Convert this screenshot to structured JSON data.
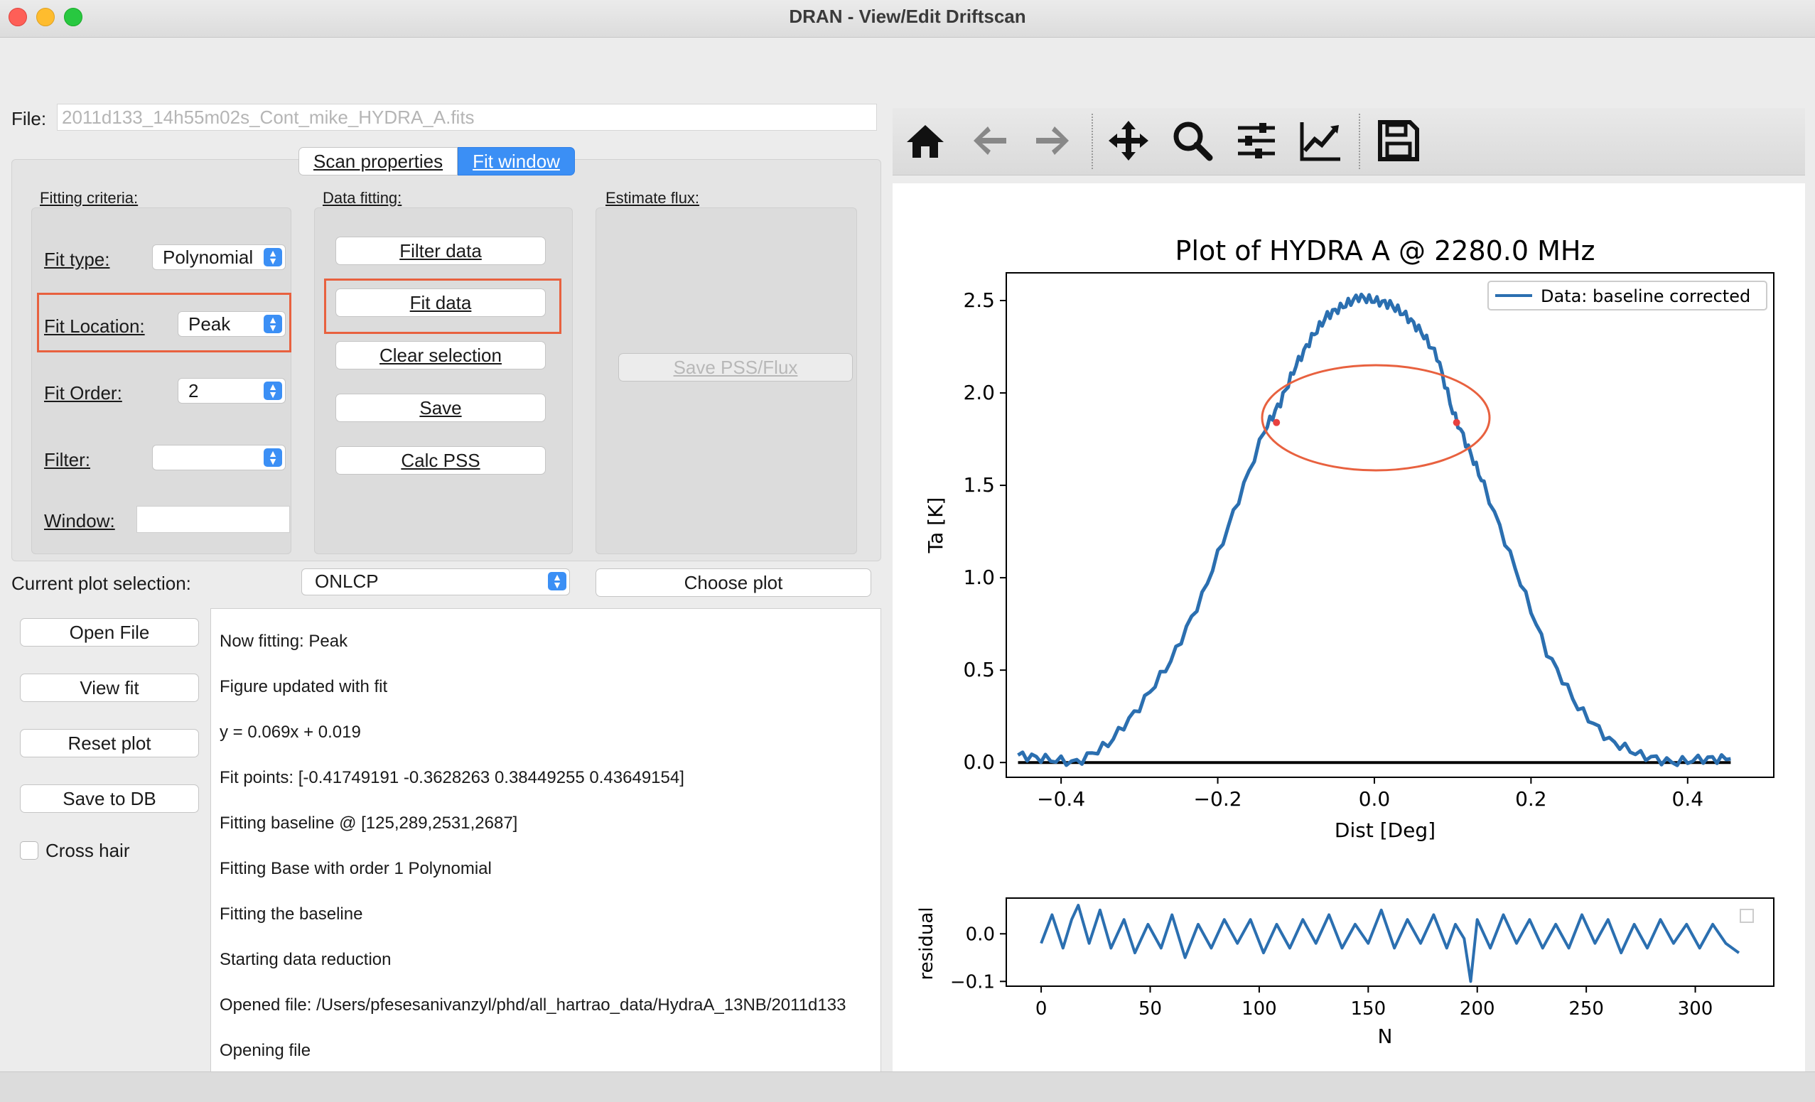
{
  "window": {
    "title": "DRAN - View/Edit Driftscan"
  },
  "file": {
    "label": "File:",
    "value": "2011d133_14h55m02s_Cont_mike_HYDRA_A.fits"
  },
  "tabs": [
    {
      "label": "Scan properties",
      "active": false
    },
    {
      "label": "Fit window",
      "active": true
    }
  ],
  "fitting_criteria": {
    "title": "Fitting criteria:",
    "fit_type": {
      "label": "Fit type:",
      "value": "Polynomial"
    },
    "fit_location": {
      "label": "Fit Location:",
      "value": "Peak"
    },
    "fit_order": {
      "label": "Fit Order:",
      "value": "2"
    },
    "filter": {
      "label": "Filter:",
      "value": ""
    },
    "window": {
      "label": "Window:",
      "value": ""
    }
  },
  "data_fitting": {
    "title": "Data fitting:",
    "buttons": [
      "Filter data",
      "Fit data",
      "Clear selection",
      "Save",
      "Calc PSS"
    ]
  },
  "estimate_flux": {
    "title": "Estimate flux:",
    "button": "Save PSS/Flux"
  },
  "plot_selection": {
    "label": "Current plot selection:",
    "value": "ONLCP",
    "choose_button": "Choose plot"
  },
  "side_buttons": [
    "Open File",
    "View fit",
    "Reset plot",
    "Save to DB"
  ],
  "cross_hair": {
    "label": "Cross hair",
    "checked": false
  },
  "log": [
    "Now fitting: Peak",
    "Figure updated with fit",
    "y = 0.069x + 0.019",
    "Fit points: [-0.41749191 -0.3628263   0.38449255  0.43649154]",
    "Fitting baseline @ [125,289,2531,2687]",
    "Fitting Base with order 1 Polynomial",
    "Fitting the baseline",
    "Starting data reduction",
    "Opened file: /Users/pfesesanivanzyl/phd/all_hartrao_data/HydraA_13NB/2011d133",
    "Opening file"
  ],
  "toolbar_icons": [
    "home-icon",
    "back-arrow-icon",
    "forward-arrow-icon",
    "pan-icon",
    "zoom-icon",
    "configure-subplots-icon",
    "edit-axis-icon",
    "save-figure-icon"
  ],
  "colors": {
    "accent": "#3b8ff5",
    "highlight": "#e8613f",
    "series": "#2b6fb0"
  },
  "chart_data": [
    {
      "type": "line",
      "title": "Plot of HYDRA A @ 2280.0 MHz",
      "xlabel": "Dist [Deg]",
      "ylabel": "Ta [K]",
      "xlim": [
        -0.47,
        0.51
      ],
      "ylim": [
        -0.08,
        2.65
      ],
      "xticks": [
        -0.4,
        -0.2,
        0.0,
        0.2,
        0.4
      ],
      "xtick_labels": [
        "−0.4",
        "−0.2",
        "0.0",
        "0.2",
        "0.4"
      ],
      "yticks": [
        0.0,
        0.5,
        1.0,
        1.5,
        2.0,
        2.5
      ],
      "ytick_labels": [
        "0.0",
        "0.5",
        "1.0",
        "1.5",
        "2.0",
        "2.5"
      ],
      "legend": {
        "placement": "top-right",
        "entries": [
          "Data: baseline corrected"
        ]
      },
      "series": [
        {
          "name": "Data: baseline corrected",
          "x": [
            -0.455,
            -0.42,
            -0.38,
            -0.34,
            -0.3,
            -0.26,
            -0.22,
            -0.18,
            -0.14,
            -0.12,
            -0.1,
            -0.08,
            -0.06,
            -0.04,
            -0.02,
            0.0,
            0.02,
            0.04,
            0.06,
            0.08,
            0.1,
            0.12,
            0.14,
            0.18,
            0.22,
            0.26,
            0.3,
            0.34,
            0.38,
            0.42,
            0.455
          ],
          "y": [
            0.04,
            0.02,
            0.0,
            0.1,
            0.3,
            0.55,
            0.9,
            1.35,
            1.8,
            1.95,
            2.15,
            2.3,
            2.42,
            2.47,
            2.52,
            2.5,
            2.48,
            2.42,
            2.33,
            2.2,
            1.9,
            1.7,
            1.5,
            1.05,
            0.6,
            0.3,
            0.12,
            0.04,
            0.0,
            0.02,
            0.02
          ]
        },
        {
          "x": [
            -0.455,
            0.455
          ],
          "y": [
            0.0,
            0.0
          ]
        }
      ],
      "fit_points": {
        "x": [
          -0.125,
          0.105
        ],
        "y": [
          1.84,
          1.84
        ]
      }
    },
    {
      "type": "line",
      "xlabel": "N",
      "ylabel": "residual",
      "xlim": [
        -16,
        336
      ],
      "ylim": [
        -0.11,
        0.075
      ],
      "xticks": [
        0,
        50,
        100,
        150,
        200,
        250,
        300
      ],
      "xtick_labels": [
        "0",
        "50",
        "100",
        "150",
        "200",
        "250",
        "300"
      ],
      "yticks": [
        0.0,
        -0.1
      ],
      "ytick_labels": [
        "0.0",
        "−0.1"
      ],
      "series": [
        {
          "x": [
            0,
            5,
            10,
            14,
            17,
            22,
            27,
            32,
            38,
            43,
            49,
            55,
            60,
            66,
            72,
            78,
            84,
            90,
            96,
            102,
            108,
            114,
            120,
            126,
            132,
            138,
            144,
            150,
            156,
            162,
            168,
            174,
            180,
            186,
            190,
            194,
            197,
            200,
            206,
            212,
            218,
            224,
            230,
            236,
            242,
            248,
            254,
            260,
            266,
            272,
            278,
            284,
            290,
            296,
            302,
            308,
            314,
            320
          ],
          "y": [
            -0.02,
            0.04,
            -0.03,
            0.03,
            0.06,
            -0.02,
            0.05,
            -0.03,
            0.03,
            -0.04,
            0.02,
            -0.03,
            0.04,
            -0.05,
            0.02,
            -0.03,
            0.03,
            -0.02,
            0.03,
            -0.04,
            0.02,
            -0.03,
            0.03,
            -0.02,
            0.04,
            -0.03,
            0.02,
            -0.02,
            0.05,
            -0.03,
            0.03,
            -0.02,
            0.04,
            -0.03,
            0.02,
            -0.01,
            -0.1,
            0.03,
            -0.03,
            0.04,
            -0.02,
            0.03,
            -0.03,
            0.02,
            -0.03,
            0.04,
            -0.02,
            0.03,
            -0.04,
            0.02,
            -0.03,
            0.03,
            -0.02,
            0.02,
            -0.03,
            0.02,
            -0.02,
            -0.04
          ]
        }
      ]
    }
  ]
}
